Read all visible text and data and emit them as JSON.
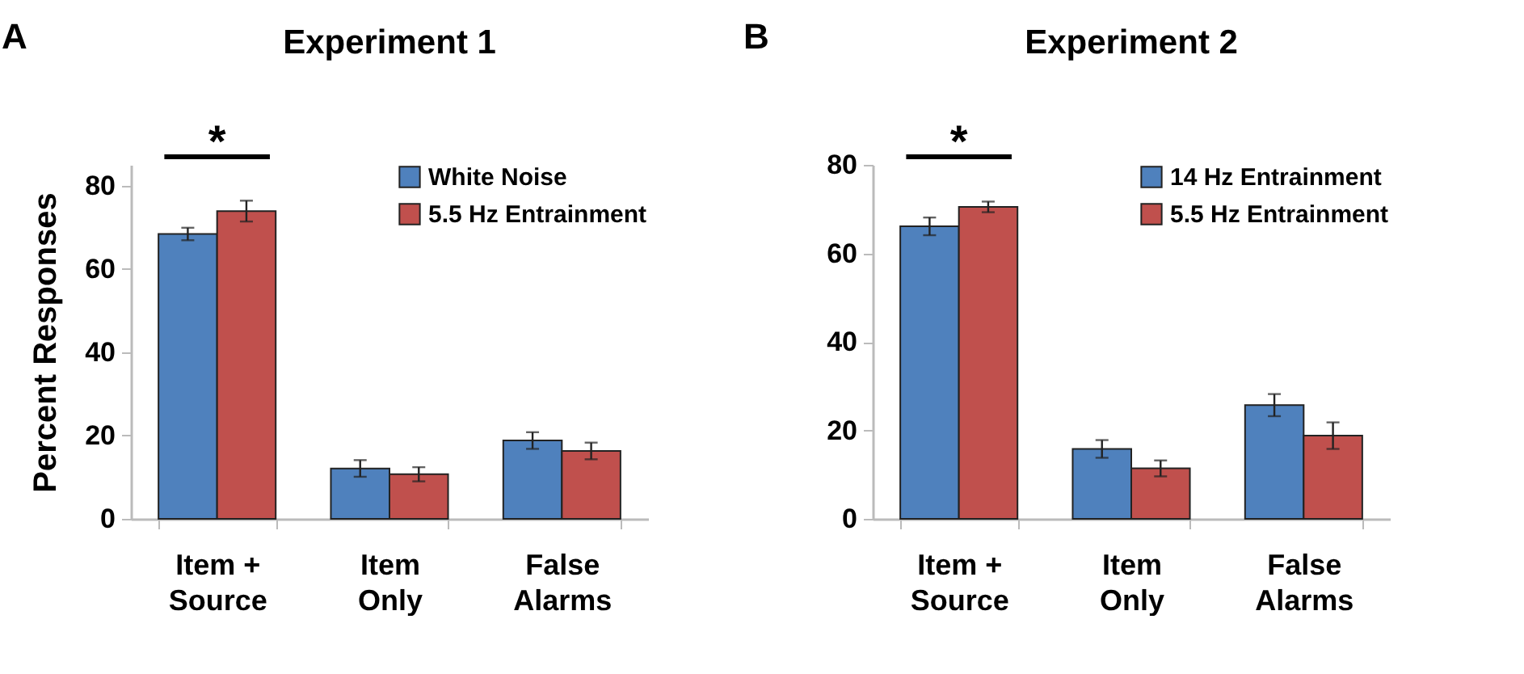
{
  "chart_data": [
    {
      "type": "bar",
      "title": "Experiment 1",
      "ylabel": "Percent Responses",
      "categories": [
        "Item + Source",
        "Item Only",
        "False Alarms"
      ],
      "series": [
        {
          "name": "White Noise",
          "color": "#4f81bd",
          "values": [
            68.4,
            12.1,
            18.8
          ],
          "errors": [
            1.5,
            2,
            2
          ]
        },
        {
          "name": "5.5 Hz Entrainment",
          "color": "#c0504d",
          "values": [
            73.9,
            10.7,
            16.3
          ],
          "errors": [
            2.5,
            1.7,
            2
          ]
        }
      ],
      "ylim": [
        0,
        85
      ],
      "yticks": [
        0,
        20,
        40,
        60,
        80
      ],
      "grid": false,
      "legend": "top right",
      "annotations": [
        "A",
        "*"
      ]
    },
    {
      "type": "bar",
      "title": "Experiment 2",
      "categories": [
        "Item + Source",
        "Item Only",
        "False Alarms"
      ],
      "series": [
        {
          "name": "14 Hz Entrainment",
          "color": "#4f81bd",
          "values": [
            66.1,
            15.8,
            25.7
          ],
          "errors": [
            2,
            2,
            2.5
          ]
        },
        {
          "name": "5.5 Hz Entrainment",
          "color": "#c0504d",
          "values": [
            70.5,
            11.4,
            18.8
          ],
          "errors": [
            1.2,
            1.8,
            3
          ]
        }
      ],
      "ylim": [
        0,
        80
      ],
      "yticks": [
        0,
        20,
        40,
        60,
        80
      ],
      "grid": false,
      "legend": "top right",
      "annotations": [
        "B",
        "*"
      ]
    }
  ]
}
